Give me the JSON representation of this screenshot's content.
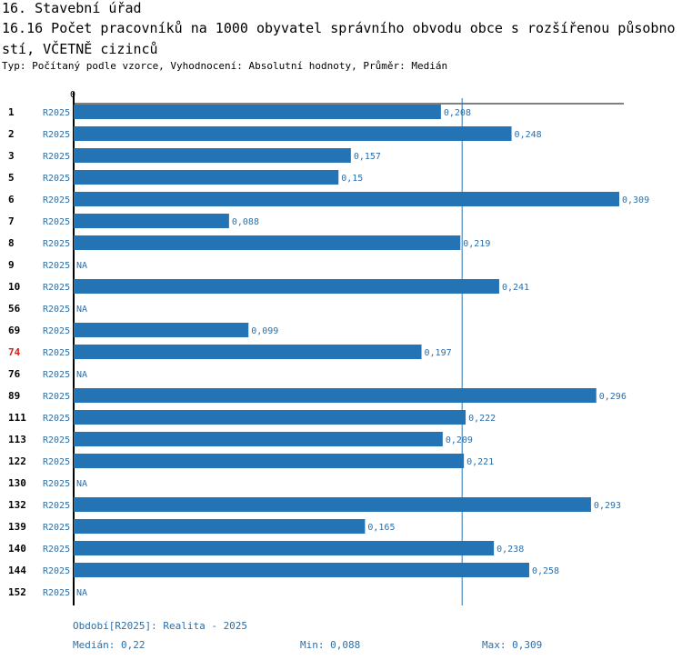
{
  "header": {
    "title": "16. Stavební úřad",
    "subtitle": "16.16 Počet pracovníků na 1000 obyvatel správního obvodu obce s rozšířenou působností, VČETNĚ cizinců",
    "meta": "Typ: Počítaný podle vzorce, Vyhodnocení: Absolutní hodnoty, Průměr: Medián"
  },
  "colors": {
    "bar": "#2474b5",
    "label": "#2e6ea6",
    "highlight": "#d42020",
    "axis": "#000000"
  },
  "chart_data": {
    "type": "bar",
    "orientation": "horizontal",
    "axis_zero_label": "0",
    "xlim": [
      0,
      0.309
    ],
    "series_label": "R2025",
    "highlight": "74",
    "median": 0.22,
    "categories": [
      "1",
      "2",
      "3",
      "5",
      "6",
      "7",
      "8",
      "9",
      "10",
      "56",
      "69",
      "74",
      "76",
      "89",
      "111",
      "113",
      "122",
      "130",
      "132",
      "139",
      "140",
      "144",
      "152"
    ],
    "values": [
      0.208,
      0.248,
      0.157,
      0.15,
      0.309,
      0.088,
      0.219,
      null,
      0.241,
      null,
      0.099,
      0.197,
      null,
      0.296,
      0.222,
      0.209,
      0.221,
      null,
      0.293,
      0.165,
      0.238,
      0.258,
      null
    ],
    "value_labels": [
      "0,208",
      "0,248",
      "0,157",
      "0,15",
      "0,309",
      "0,088",
      "0,219",
      "NA",
      "0,241",
      "NA",
      "0,099",
      "0,197",
      "NA",
      "0,296",
      "0,222",
      "0,209",
      "0,221",
      "NA",
      "0,293",
      "0,165",
      "0,238",
      "0,258",
      "NA"
    ]
  },
  "footer": {
    "period": "Období[R2025]: Realita - 2025",
    "median": "Medián: 0,22",
    "min": "Min: 0,088",
    "max": "Max: 0,309"
  }
}
